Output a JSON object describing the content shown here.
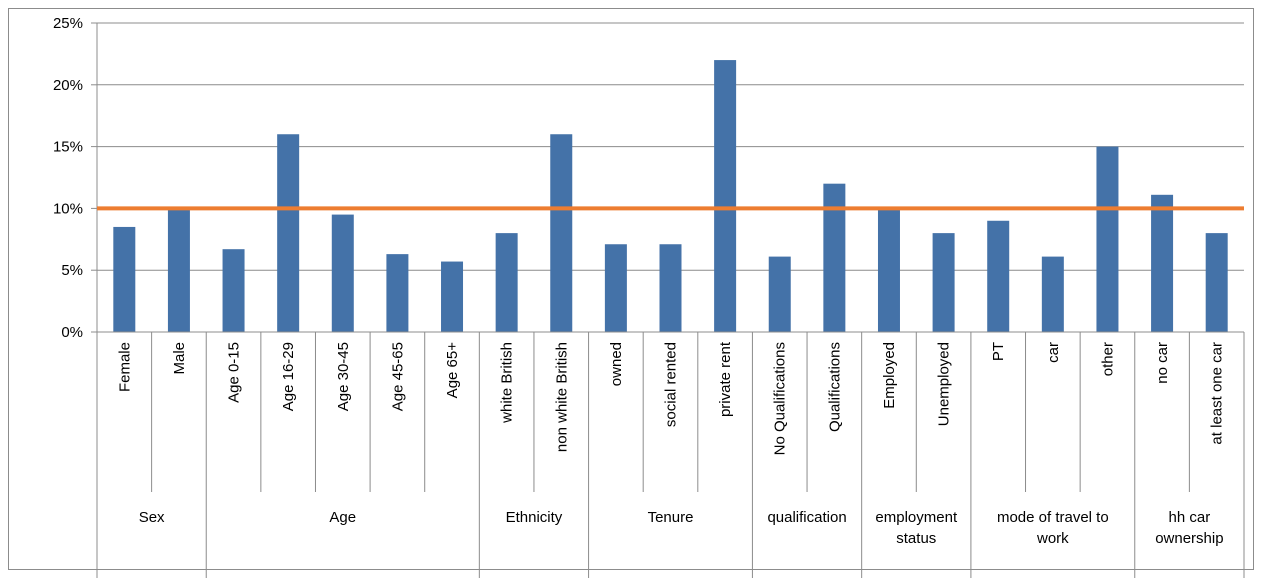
{
  "chart_data": {
    "type": "bar",
    "categories": [
      "Female",
      "Male",
      "Age 0-15",
      "Age 16-29",
      "Age 30-45",
      "Age 45-65",
      "Age 65+",
      "white British",
      "non white British",
      "owned",
      "social rented",
      "private rent",
      "No Qualifications",
      "Qualifications",
      "Employed",
      "Unemployed",
      "PT",
      "car",
      "other",
      "no car",
      "at least one car"
    ],
    "values": [
      8.5,
      10.0,
      6.7,
      16.0,
      9.5,
      6.3,
      5.7,
      8.0,
      16.0,
      7.1,
      7.1,
      22.0,
      6.1,
      12.0,
      10.0,
      8.0,
      9.0,
      6.1,
      15.0,
      11.1,
      8.0
    ],
    "groups": [
      {
        "lines": [
          "Sex"
        ],
        "count": 2
      },
      {
        "lines": [
          "Age"
        ],
        "count": 5
      },
      {
        "lines": [
          "Ethnicity"
        ],
        "count": 2
      },
      {
        "lines": [
          "Tenure"
        ],
        "count": 3
      },
      {
        "lines": [
          "qualification"
        ],
        "count": 2
      },
      {
        "lines": [
          "employment",
          "status"
        ],
        "count": 2
      },
      {
        "lines": [
          "mode of travel to",
          "work"
        ],
        "count": 3
      },
      {
        "lines": [
          "hh car",
          "ownership"
        ],
        "count": 2
      }
    ],
    "reference_line": {
      "value": 10,
      "color": "#ED7D31"
    },
    "yticks": [
      "0%",
      "5%",
      "10%",
      "15%",
      "20%",
      "25%"
    ],
    "ylim": [
      0,
      25
    ],
    "bar_color": "#4472A8",
    "title": "",
    "xlabel": "",
    "ylabel": "",
    "grid": true,
    "legend": "none"
  }
}
